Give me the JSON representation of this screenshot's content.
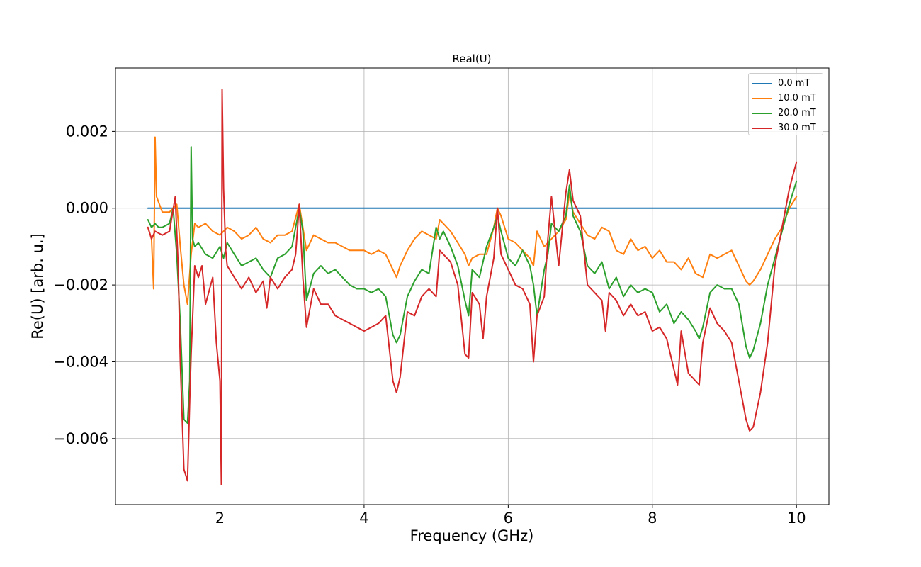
{
  "chart_data": {
    "type": "line",
    "title": "Real(U)",
    "xlabel": "Frequency (GHz)",
    "ylabel": "Re(U) [arb. u.]",
    "xlim": [
      0.55,
      10.45
    ],
    "ylim": [
      -0.00772,
      0.00365
    ],
    "xticks": [
      2,
      4,
      6,
      8,
      10
    ],
    "xtick_labels": [
      "2",
      "4",
      "6",
      "8",
      "10"
    ],
    "yticks": [
      0.002,
      0.0,
      -0.002,
      -0.004,
      -0.006
    ],
    "ytick_labels": [
      "0.002",
      "0.000",
      "−0.002",
      "−0.004",
      "−0.006"
    ],
    "grid": true,
    "legend_position": "top-right",
    "series": [
      {
        "name": "0.0 mT",
        "color": "#1f77b4",
        "x": [
          1.0,
          10.0
        ],
        "y": [
          0.0,
          0.0
        ]
      },
      {
        "name": "10.0 mT",
        "color": "#ff7f0e",
        "x": [
          1.0,
          1.05,
          1.08,
          1.1,
          1.12,
          1.2,
          1.3,
          1.4,
          1.45,
          1.5,
          1.55,
          1.6,
          1.65,
          1.7,
          1.8,
          1.9,
          2.0,
          2.1,
          2.2,
          2.3,
          2.4,
          2.5,
          2.6,
          2.7,
          2.8,
          2.9,
          3.0,
          3.1,
          3.15,
          3.2,
          3.3,
          3.4,
          3.5,
          3.6,
          3.7,
          3.8,
          3.9,
          4.0,
          4.1,
          4.2,
          4.3,
          4.4,
          4.45,
          4.5,
          4.6,
          4.7,
          4.8,
          4.9,
          5.0,
          5.05,
          5.1,
          5.2,
          5.3,
          5.4,
          5.45,
          5.5,
          5.6,
          5.7,
          5.8,
          5.85,
          5.9,
          6.0,
          6.1,
          6.2,
          6.3,
          6.35,
          6.4,
          6.5,
          6.6,
          6.7,
          6.8,
          6.85,
          6.9,
          7.0,
          7.1,
          7.2,
          7.3,
          7.4,
          7.5,
          7.6,
          7.7,
          7.8,
          7.9,
          8.0,
          8.1,
          8.2,
          8.3,
          8.4,
          8.5,
          8.6,
          8.7,
          8.8,
          8.9,
          9.0,
          9.1,
          9.2,
          9.3,
          9.35,
          9.4,
          9.5,
          9.6,
          9.7,
          9.8,
          9.9,
          10.0
        ],
        "y": [
          -0.0005,
          -0.0008,
          -0.0021,
          0.00185,
          0.0003,
          -0.0001,
          -0.0001,
          0.0001,
          -0.001,
          -0.002,
          -0.0025,
          -0.0012,
          -0.0004,
          -0.0005,
          -0.0004,
          -0.0006,
          -0.0007,
          -0.0005,
          -0.0006,
          -0.0008,
          -0.0007,
          -0.0005,
          -0.0008,
          -0.0009,
          -0.0007,
          -0.0007,
          -0.0006,
          0.0001,
          -0.0005,
          -0.0011,
          -0.0007,
          -0.0008,
          -0.0009,
          -0.0009,
          -0.001,
          -0.0011,
          -0.0011,
          -0.0011,
          -0.0012,
          -0.0011,
          -0.0012,
          -0.0016,
          -0.0018,
          -0.0015,
          -0.0011,
          -0.0008,
          -0.0006,
          -0.0007,
          -0.0008,
          -0.0003,
          -0.0004,
          -0.0006,
          -0.0009,
          -0.0012,
          -0.0015,
          -0.0013,
          -0.0012,
          -0.0012,
          -0.0005,
          0.0,
          -0.0002,
          -0.0008,
          -0.0009,
          -0.0011,
          -0.0013,
          -0.0015,
          -0.0006,
          -0.001,
          -0.0008,
          -0.0006,
          -0.0003,
          0.0004,
          -0.0001,
          -0.0004,
          -0.0007,
          -0.0008,
          -0.0005,
          -0.0006,
          -0.0011,
          -0.0012,
          -0.0008,
          -0.0011,
          -0.001,
          -0.0013,
          -0.0011,
          -0.0014,
          -0.0014,
          -0.0016,
          -0.0013,
          -0.0017,
          -0.0018,
          -0.0012,
          -0.0013,
          -0.0012,
          -0.0011,
          -0.0015,
          -0.0019,
          -0.002,
          -0.0019,
          -0.0016,
          -0.0012,
          -0.0008,
          -0.0005,
          0.0,
          0.0003
        ]
      },
      {
        "name": "20.0 mT",
        "color": "#2ca02c",
        "x": [
          1.0,
          1.05,
          1.1,
          1.15,
          1.2,
          1.3,
          1.35,
          1.4,
          1.45,
          1.5,
          1.55,
          1.58,
          1.6,
          1.62,
          1.65,
          1.7,
          1.8,
          1.9,
          2.0,
          2.05,
          2.1,
          2.2,
          2.3,
          2.4,
          2.5,
          2.6,
          2.7,
          2.8,
          2.9,
          3.0,
          3.1,
          3.15,
          3.2,
          3.3,
          3.4,
          3.5,
          3.6,
          3.7,
          3.8,
          3.9,
          4.0,
          4.1,
          4.2,
          4.3,
          4.4,
          4.45,
          4.5,
          4.6,
          4.7,
          4.8,
          4.9,
          5.0,
          5.05,
          5.1,
          5.2,
          5.3,
          5.4,
          5.45,
          5.5,
          5.6,
          5.7,
          5.8,
          5.85,
          5.9,
          6.0,
          6.1,
          6.2,
          6.3,
          6.35,
          6.4,
          6.5,
          6.55,
          6.6,
          6.7,
          6.8,
          6.85,
          6.9,
          7.0,
          7.1,
          7.2,
          7.3,
          7.4,
          7.5,
          7.6,
          7.7,
          7.8,
          7.9,
          8.0,
          8.1,
          8.2,
          8.3,
          8.4,
          8.5,
          8.6,
          8.65,
          8.7,
          8.8,
          8.9,
          9.0,
          9.1,
          9.2,
          9.3,
          9.35,
          9.4,
          9.5,
          9.6,
          9.7,
          9.8,
          9.9,
          10.0
        ],
        "y": [
          -0.0003,
          -0.0005,
          -0.0004,
          -0.0005,
          -0.0005,
          -0.0004,
          0.0,
          -0.0012,
          -0.003,
          -0.0055,
          -0.0056,
          -0.0045,
          0.0016,
          -0.0008,
          -0.001,
          -0.0009,
          -0.0012,
          -0.0013,
          -0.001,
          -0.0013,
          -0.0009,
          -0.0012,
          -0.0015,
          -0.0014,
          -0.0013,
          -0.0016,
          -0.0018,
          -0.0013,
          -0.0012,
          -0.001,
          0.0,
          -0.0006,
          -0.0024,
          -0.0017,
          -0.0015,
          -0.0017,
          -0.0016,
          -0.0018,
          -0.002,
          -0.0021,
          -0.0021,
          -0.0022,
          -0.0021,
          -0.0023,
          -0.0033,
          -0.0035,
          -0.0033,
          -0.0023,
          -0.0019,
          -0.0016,
          -0.0017,
          -0.0005,
          -0.0008,
          -0.0006,
          -0.001,
          -0.0015,
          -0.0024,
          -0.0028,
          -0.0016,
          -0.0018,
          -0.001,
          -0.0005,
          -0.0002,
          -0.0006,
          -0.0013,
          -0.0015,
          -0.0011,
          -0.0015,
          -0.002,
          -0.0028,
          -0.0016,
          -0.0012,
          -0.0004,
          -0.0006,
          -0.0002,
          0.0006,
          -0.0002,
          -0.0006,
          -0.0015,
          -0.0017,
          -0.0014,
          -0.0021,
          -0.0018,
          -0.0023,
          -0.002,
          -0.0022,
          -0.0021,
          -0.0022,
          -0.0027,
          -0.0025,
          -0.003,
          -0.0027,
          -0.0029,
          -0.0032,
          -0.0034,
          -0.0031,
          -0.0022,
          -0.002,
          -0.0021,
          -0.0021,
          -0.0025,
          -0.0036,
          -0.0039,
          -0.0037,
          -0.003,
          -0.002,
          -0.0013,
          -0.0006,
          0.0001,
          0.0007
        ]
      },
      {
        "name": "30.0 mT",
        "color": "#d62728",
        "x": [
          1.0,
          1.05,
          1.1,
          1.2,
          1.3,
          1.38,
          1.42,
          1.45,
          1.5,
          1.55,
          1.58,
          1.6,
          1.65,
          1.7,
          1.75,
          1.8,
          1.9,
          1.95,
          2.0,
          2.02,
          2.03,
          2.05,
          2.08,
          2.1,
          2.2,
          2.3,
          2.4,
          2.5,
          2.6,
          2.65,
          2.7,
          2.8,
          2.9,
          3.0,
          3.05,
          3.1,
          3.15,
          3.2,
          3.3,
          3.4,
          3.5,
          3.6,
          3.7,
          3.8,
          3.9,
          4.0,
          4.1,
          4.2,
          4.3,
          4.4,
          4.45,
          4.5,
          4.6,
          4.7,
          4.8,
          4.9,
          5.0,
          5.05,
          5.1,
          5.2,
          5.3,
          5.4,
          5.45,
          5.5,
          5.6,
          5.65,
          5.7,
          5.8,
          5.85,
          5.9,
          6.0,
          6.1,
          6.2,
          6.3,
          6.35,
          6.4,
          6.5,
          6.55,
          6.6,
          6.7,
          6.8,
          6.85,
          6.9,
          7.0,
          7.1,
          7.2,
          7.3,
          7.35,
          7.4,
          7.5,
          7.6,
          7.7,
          7.8,
          7.9,
          8.0,
          8.1,
          8.2,
          8.3,
          8.35,
          8.4,
          8.5,
          8.6,
          8.65,
          8.7,
          8.8,
          8.9,
          9.0,
          9.1,
          9.2,
          9.3,
          9.35,
          9.4,
          9.5,
          9.6,
          9.7,
          9.8,
          9.9,
          10.0
        ],
        "y": [
          -0.0005,
          -0.0008,
          -0.0006,
          -0.0007,
          -0.0006,
          0.0003,
          -0.0015,
          -0.004,
          -0.0068,
          -0.0071,
          -0.005,
          -0.0038,
          -0.0015,
          -0.0018,
          -0.0015,
          -0.0025,
          -0.0018,
          -0.0035,
          -0.0045,
          -0.0072,
          0.0031,
          0.0005,
          -0.0011,
          -0.0015,
          -0.0018,
          -0.0021,
          -0.0018,
          -0.0022,
          -0.0019,
          -0.0026,
          -0.0018,
          -0.0021,
          -0.0018,
          -0.0016,
          -0.0012,
          0.0001,
          -0.0018,
          -0.0031,
          -0.0021,
          -0.0025,
          -0.0025,
          -0.0028,
          -0.0029,
          -0.003,
          -0.0031,
          -0.0032,
          -0.0031,
          -0.003,
          -0.0028,
          -0.0045,
          -0.0048,
          -0.0044,
          -0.0027,
          -0.0028,
          -0.0023,
          -0.0021,
          -0.0023,
          -0.0011,
          -0.0012,
          -0.0014,
          -0.002,
          -0.0038,
          -0.0039,
          -0.0022,
          -0.0025,
          -0.0034,
          -0.0023,
          -0.0013,
          0.0,
          -0.0012,
          -0.0016,
          -0.002,
          -0.0021,
          -0.0025,
          -0.004,
          -0.0028,
          -0.0023,
          -0.0008,
          0.0003,
          -0.0015,
          0.0004,
          0.001,
          0.0002,
          -0.0002,
          -0.002,
          -0.0022,
          -0.0024,
          -0.0032,
          -0.0022,
          -0.0024,
          -0.0028,
          -0.0025,
          -0.0028,
          -0.0027,
          -0.0032,
          -0.0031,
          -0.0034,
          -0.0042,
          -0.0046,
          -0.0032,
          -0.0043,
          -0.0045,
          -0.0046,
          -0.0035,
          -0.0026,
          -0.003,
          -0.0032,
          -0.0035,
          -0.0045,
          -0.0055,
          -0.0058,
          -0.0057,
          -0.0048,
          -0.0035,
          -0.0015,
          -0.0005,
          0.0005,
          0.0012
        ]
      }
    ]
  }
}
